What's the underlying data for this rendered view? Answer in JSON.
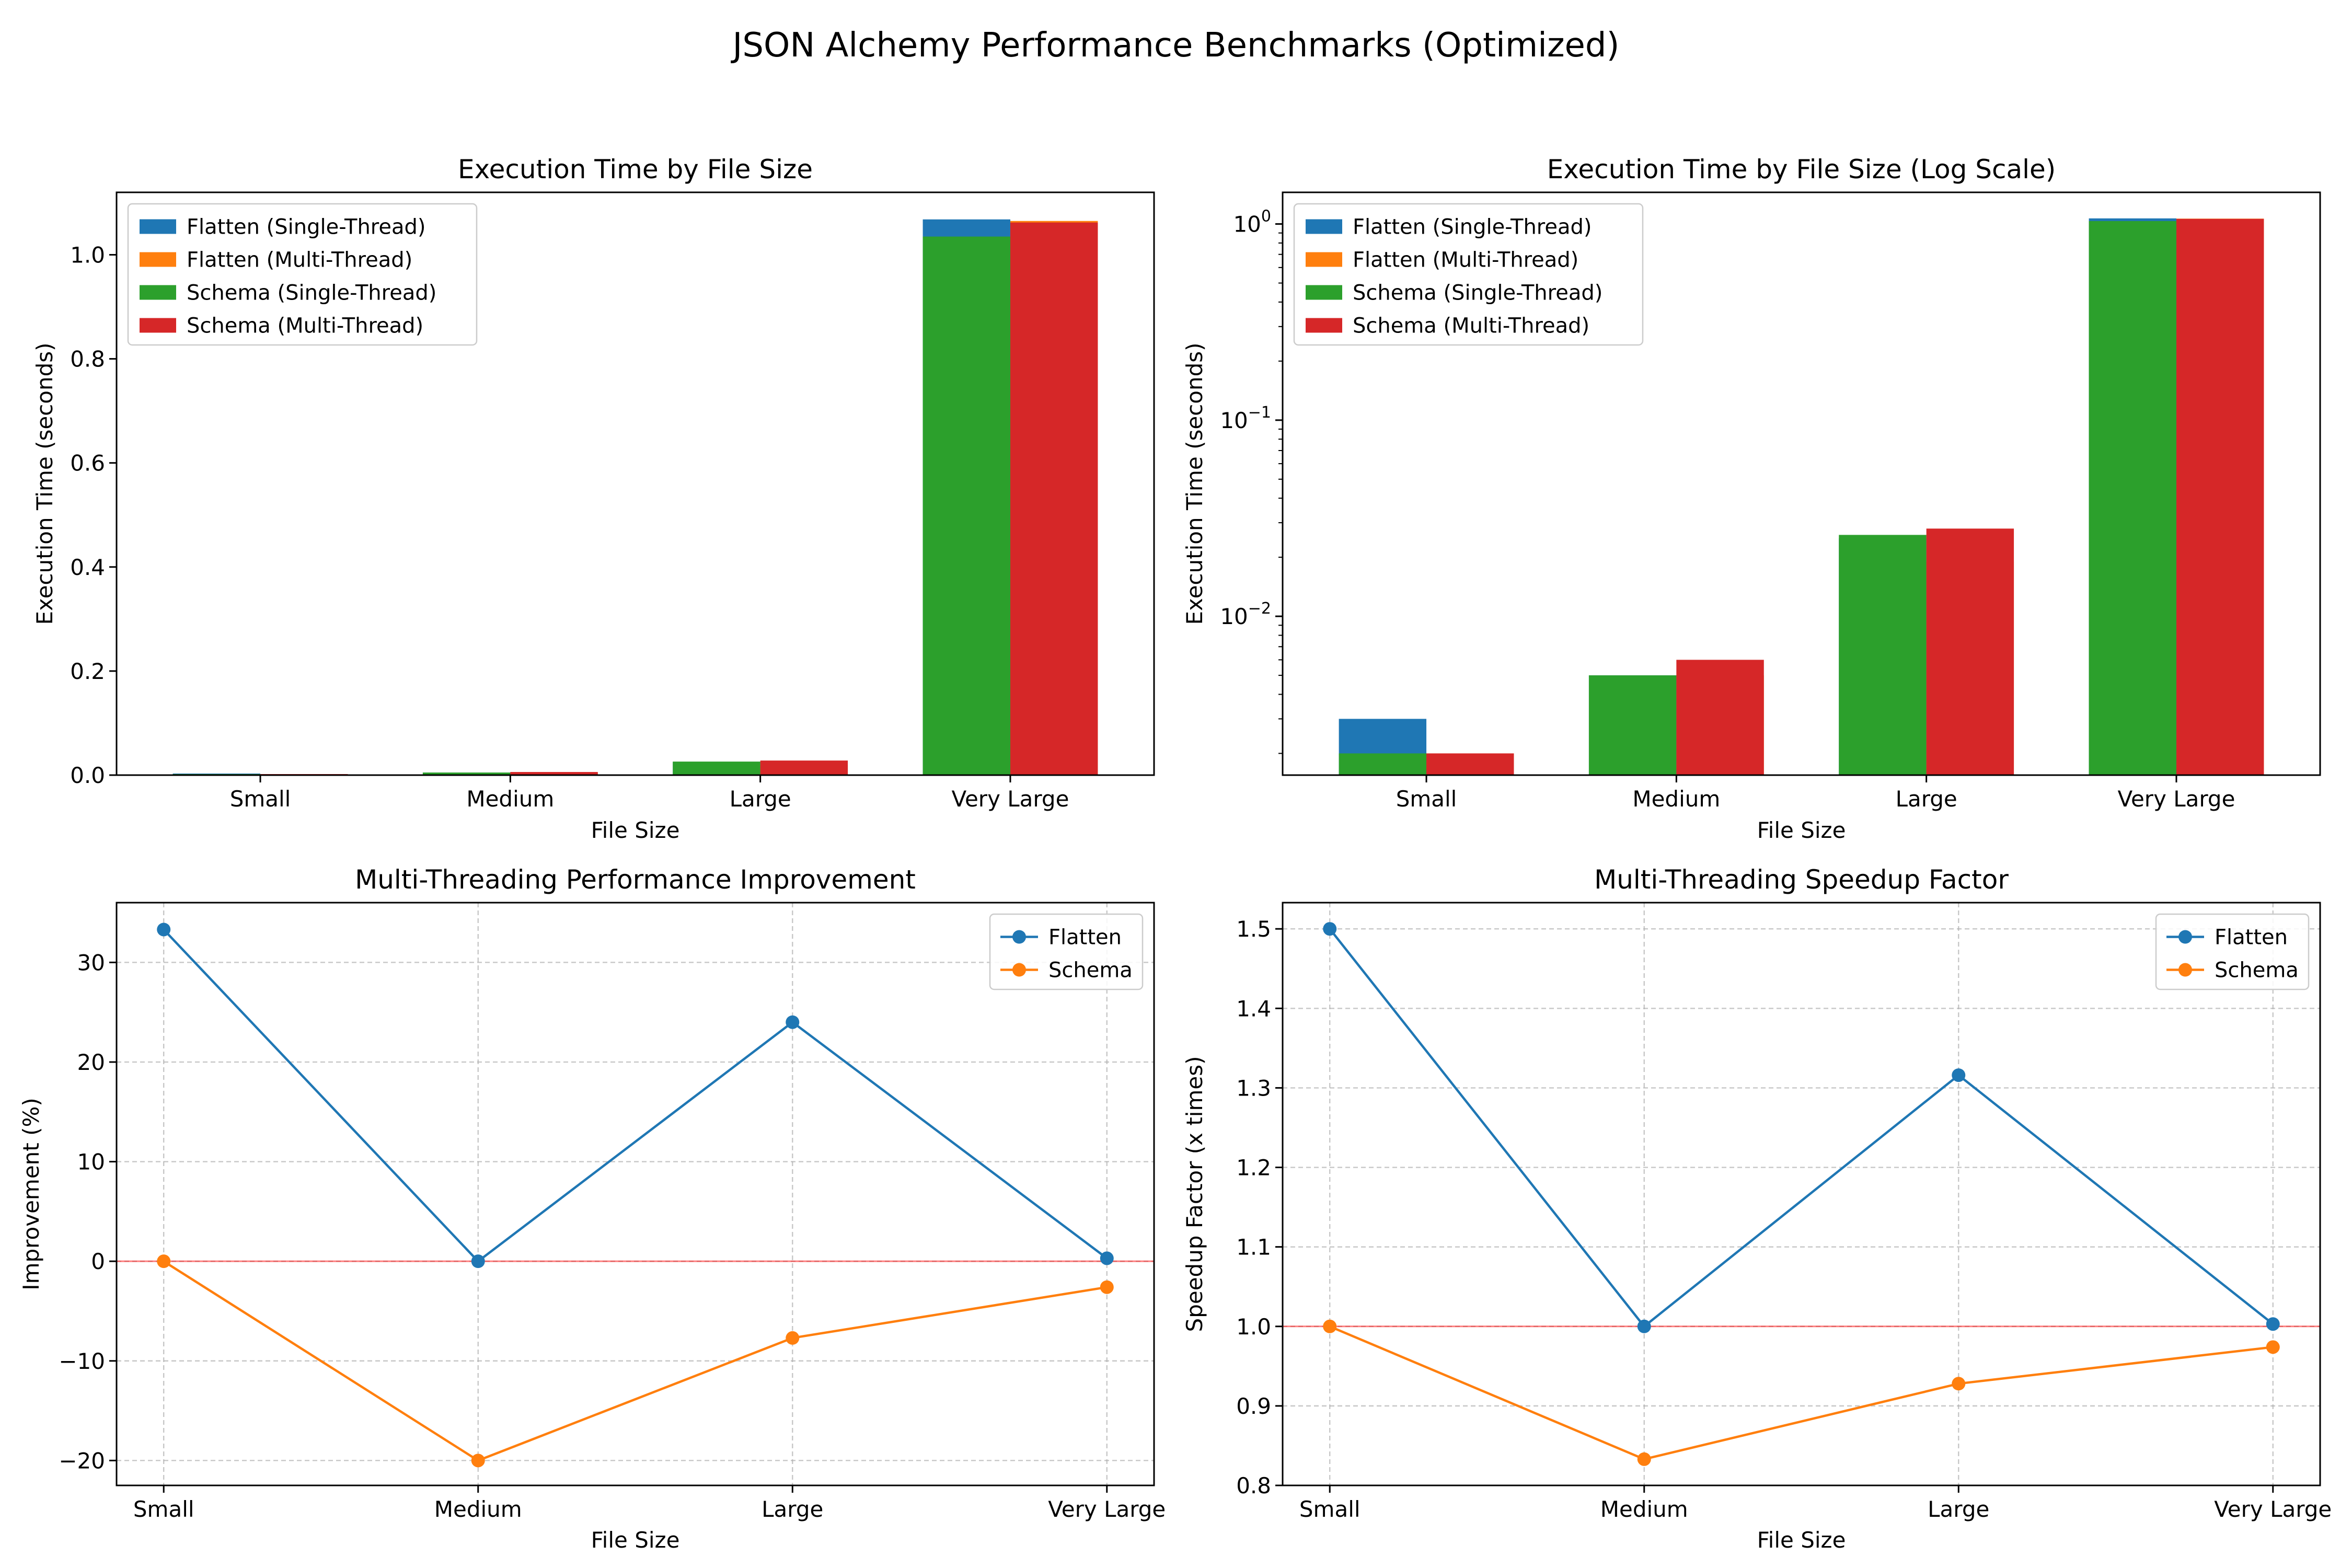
{
  "figure": {
    "title": "JSON Alchemy Performance Benchmarks (Optimized)"
  },
  "colors": {
    "flatten_single": "#1f77b4",
    "flatten_multi": "#ff7f0e",
    "schema_single": "#2ca02c",
    "schema_multi": "#d62728",
    "reference_line": "#ff0000",
    "grid": "#b0b0b0"
  },
  "chart_data": [
    {
      "type": "bar",
      "title": "Execution Time by File Size",
      "xlabel": "File Size",
      "ylabel": "Execution Time (seconds)",
      "categories": [
        "Small",
        "Medium",
        "Large",
        "Very Large"
      ],
      "ylim": [
        0,
        1.12
      ],
      "yticks": [
        0.0,
        0.2,
        0.4,
        0.6,
        0.8,
        1.0
      ],
      "ytick_labels": [
        "0.0",
        "0.2",
        "0.4",
        "0.6",
        "0.8",
        "1.0"
      ],
      "yscale": "linear",
      "grid": false,
      "legend_position": "top-left",
      "series": [
        {
          "name": "Flatten (Single-Thread)",
          "values": [
            0.003,
            0.005,
            0.025,
            1.068
          ],
          "color_key": "flatten_single",
          "group": "left"
        },
        {
          "name": "Flatten (Multi-Thread)",
          "values": [
            0.002,
            0.005,
            0.019,
            1.065
          ],
          "color_key": "flatten_multi",
          "group": "right"
        },
        {
          "name": "Schema (Single-Thread)",
          "values": [
            0.002,
            0.005,
            0.026,
            1.035
          ],
          "color_key": "schema_single",
          "group": "left"
        },
        {
          "name": "Schema (Multi-Thread)",
          "values": [
            0.002,
            0.006,
            0.028,
            1.062
          ],
          "color_key": "schema_multi",
          "group": "right"
        }
      ]
    },
    {
      "type": "bar",
      "title": "Execution Time by File Size (Log Scale)",
      "xlabel": "File Size",
      "ylabel": "Execution Time (seconds)",
      "categories": [
        "Small",
        "Medium",
        "Large",
        "Very Large"
      ],
      "ylim": [
        0.00155,
        1.45
      ],
      "yticks": [
        0.01,
        0.1,
        1
      ],
      "ytick_labels": [
        [
          "10",
          "−2"
        ],
        [
          "10",
          "−1"
        ],
        [
          "10",
          "0"
        ]
      ],
      "yscale": "log",
      "grid": false,
      "legend_position": "top-left",
      "series": [
        {
          "name": "Flatten (Single-Thread)",
          "values": [
            0.003,
            0.005,
            0.025,
            1.068
          ],
          "color_key": "flatten_single",
          "group": "left"
        },
        {
          "name": "Flatten (Multi-Thread)",
          "values": [
            0.002,
            0.005,
            0.019,
            1.065
          ],
          "color_key": "flatten_multi",
          "group": "right"
        },
        {
          "name": "Schema (Single-Thread)",
          "values": [
            0.002,
            0.005,
            0.026,
            1.035
          ],
          "color_key": "schema_single",
          "group": "left"
        },
        {
          "name": "Schema (Multi-Thread)",
          "values": [
            0.002,
            0.006,
            0.028,
            1.062
          ],
          "color_key": "schema_multi",
          "group": "right"
        }
      ]
    },
    {
      "type": "line",
      "title": "Multi-Threading Performance Improvement",
      "xlabel": "File Size",
      "ylabel": "Improvement (%)",
      "categories": [
        "Small",
        "Medium",
        "Large",
        "Very Large"
      ],
      "ylim": [
        -22.5,
        36
      ],
      "yticks": [
        -20,
        -10,
        0,
        10,
        20,
        30
      ],
      "ytick_labels": [
        "−20",
        "−10",
        "0",
        "10",
        "20",
        "30"
      ],
      "yscale": "linear",
      "grid": true,
      "reference_y": 0,
      "legend_position": "top-right",
      "series": [
        {
          "name": "Flatten",
          "values": [
            33.3,
            0.0,
            24.0,
            0.3
          ],
          "color_key": "flatten_single"
        },
        {
          "name": "Schema",
          "values": [
            0.0,
            -20.0,
            -7.7,
            -2.6
          ],
          "color_key": "flatten_multi"
        }
      ]
    },
    {
      "type": "line",
      "title": "Multi-Threading Speedup Factor",
      "xlabel": "File Size",
      "ylabel": "Speedup Factor (x times)",
      "categories": [
        "Small",
        "Medium",
        "Large",
        "Very Large"
      ],
      "ylim": [
        0.8,
        1.533
      ],
      "yticks": [
        0.8,
        0.9,
        1.0,
        1.1,
        1.2,
        1.3,
        1.4,
        1.5
      ],
      "ytick_labels": [
        "0.8",
        "0.9",
        "1.0",
        "1.1",
        "1.2",
        "1.3",
        "1.4",
        "1.5"
      ],
      "yscale": "linear",
      "grid": true,
      "reference_y": 1.0,
      "legend_position": "top-right",
      "series": [
        {
          "name": "Flatten",
          "values": [
            1.5,
            1.0,
            1.316,
            1.003
          ],
          "color_key": "flatten_single"
        },
        {
          "name": "Schema",
          "values": [
            1.0,
            0.833,
            0.928,
            0.974
          ],
          "color_key": "flatten_multi"
        }
      ]
    }
  ]
}
